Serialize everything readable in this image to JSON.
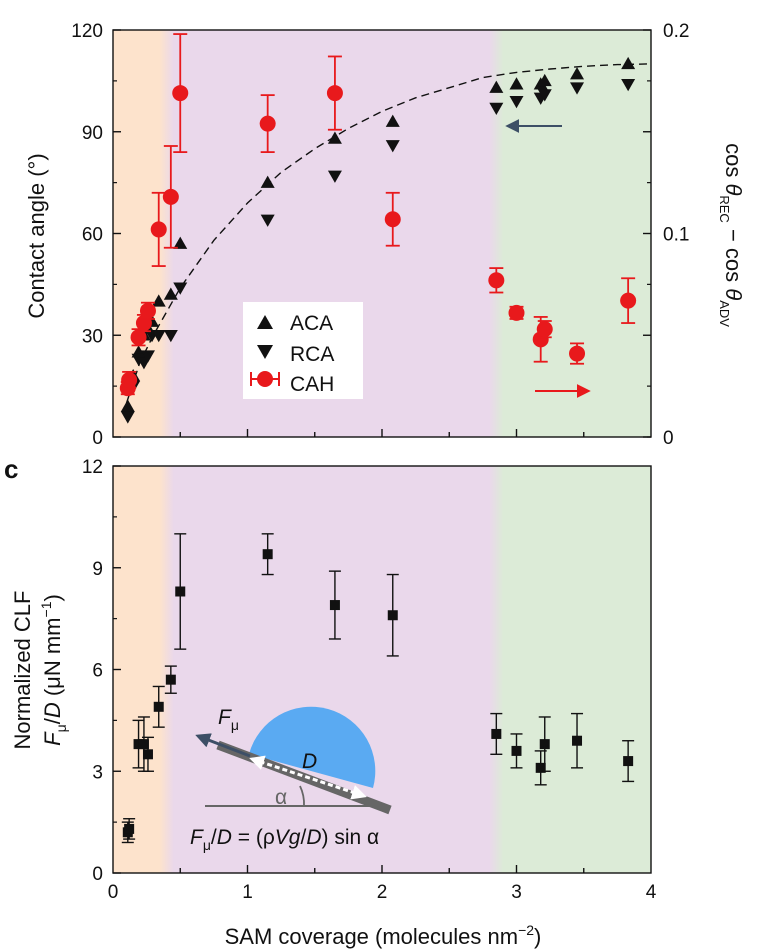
{
  "figure": {
    "panel_label": "c",
    "xlabel": "SAM coverage (molecules nm",
    "xlabel_sup": "−2",
    "xlabel_end": ")"
  },
  "colors": {
    "orange_band": "#fde3cc",
    "purple_band": "#ead8eb",
    "green_band": "#dcebd7",
    "red": "#e8191c",
    "black": "#111111",
    "arrow_blue": "#3d4f66",
    "drop_blue": "#5aaaf2",
    "incline": "#666666"
  },
  "inset": {
    "force_label": "F",
    "force_sub": "μ",
    "diameter_label": "D",
    "angle_label": "α",
    "formula": "Fμ/D = (ρVg/D) sin α"
  },
  "chart_data": [
    {
      "type": "scatter",
      "panel": "top",
      "xlabel": "SAM coverage (molecules nm−2)",
      "ylabel": "Contact angle (°)",
      "ylabel_right": "cos θREC − cos θADV",
      "xlim": [
        0,
        4
      ],
      "ylim": [
        0,
        120
      ],
      "ylim_right": [
        0,
        0.2
      ],
      "yticks": [
        0,
        30,
        60,
        90,
        120
      ],
      "yticks_right": [
        "0",
        "0.1",
        "0.2"
      ],
      "legend": [
        "ACA",
        "RCA",
        "CAH"
      ],
      "legend_placement": "center",
      "bands": [
        {
          "name": "orange",
          "x0": 0,
          "x1": 0.4
        },
        {
          "name": "purple",
          "x0": 0.4,
          "x1": 2.85
        },
        {
          "name": "green",
          "x0": 2.85,
          "x1": 4
        }
      ],
      "series": [
        {
          "name": "ACA",
          "marker": "triangle-up",
          "x": [
            0.11,
            0.15,
            0.19,
            0.23,
            0.26,
            0.29,
            0.34,
            0.43,
            0.5,
            1.15,
            1.65,
            2.08,
            2.85,
            3.0,
            3.18,
            3.21,
            3.45,
            3.83
          ],
          "y": [
            9,
            18,
            25,
            30,
            32,
            34,
            40,
            42,
            57,
            75,
            88,
            93,
            103,
            104,
            104,
            105,
            107,
            110
          ]
        },
        {
          "name": "RCA",
          "marker": "triangle-down",
          "x": [
            0.11,
            0.15,
            0.19,
            0.23,
            0.26,
            0.29,
            0.34,
            0.43,
            0.5,
            1.15,
            1.65,
            2.08,
            2.85,
            3.0,
            3.18,
            3.21,
            3.45,
            3.83
          ],
          "y": [
            6,
            15,
            23,
            22,
            24,
            30,
            30,
            30,
            44,
            64,
            77,
            86,
            97,
            99,
            100,
            101,
            103,
            104
          ]
        },
        {
          "name": "CAH",
          "axis": "right",
          "marker": "circle",
          "x": [
            0.11,
            0.12,
            0.19,
            0.23,
            0.26,
            0.34,
            0.43,
            0.5,
            1.15,
            1.65,
            2.08,
            2.85,
            3.0,
            3.18,
            3.21,
            3.45,
            3.83
          ],
          "y": [
            0.024,
            0.028,
            0.049,
            0.056,
            0.062,
            0.102,
            0.118,
            0.169,
            0.154,
            0.169,
            0.107,
            0.077,
            0.061,
            0.048,
            0.053,
            0.041,
            0.067
          ],
          "err": [
            0.003,
            0.004,
            0.004,
            0.004,
            0.004,
            0.018,
            0.025,
            0.029,
            0.014,
            0.018,
            0.013,
            0.006,
            0.003,
            0.011,
            0.004,
            0.005,
            0.011
          ]
        }
      ],
      "fit_curve": {
        "x": [
          0.1,
          0.2,
          0.3,
          0.5,
          0.75,
          1.0,
          1.25,
          1.5,
          1.75,
          2.0,
          2.25,
          2.5,
          2.75,
          3.0,
          3.25,
          3.5,
          3.75,
          4.0
        ],
        "y": [
          10,
          22,
          30,
          44,
          58,
          69,
          78,
          85,
          91,
          96,
          100,
          103,
          106,
          107.5,
          108.5,
          109.3,
          109.8,
          110
        ]
      },
      "annotations": [
        {
          "text": "arrow",
          "direction": "left",
          "axis": "left"
        },
        {
          "text": "arrow",
          "direction": "right",
          "axis": "right"
        }
      ]
    },
    {
      "type": "scatter",
      "panel": "c",
      "xlabel": "SAM coverage (molecules nm−2)",
      "ylabel_line1": "Normalized CLF",
      "ylabel_line2": "Fμ/D (μN mm−1)",
      "xlim": [
        0,
        4
      ],
      "ylim": [
        0,
        12
      ],
      "xticks": [
        0,
        1,
        2,
        3,
        4
      ],
      "yticks": [
        0,
        3,
        6,
        9,
        12
      ],
      "series": [
        {
          "name": "Normalized CLF",
          "marker": "square",
          "x": [
            0.11,
            0.12,
            0.19,
            0.23,
            0.26,
            0.34,
            0.43,
            0.5,
            1.15,
            1.65,
            2.08,
            2.85,
            3.0,
            3.18,
            3.21,
            3.45,
            3.83
          ],
          "y": [
            1.2,
            1.3,
            3.8,
            3.8,
            3.5,
            4.9,
            5.7,
            8.3,
            9.4,
            7.9,
            7.6,
            4.1,
            3.6,
            3.1,
            3.8,
            3.9,
            3.3
          ],
          "err": [
            0.3,
            0.3,
            0.7,
            0.8,
            0.5,
            0.6,
            0.4,
            1.7,
            0.6,
            1.0,
            1.2,
            0.6,
            0.5,
            0.5,
            0.8,
            0.8,
            0.6
          ]
        }
      ]
    }
  ]
}
